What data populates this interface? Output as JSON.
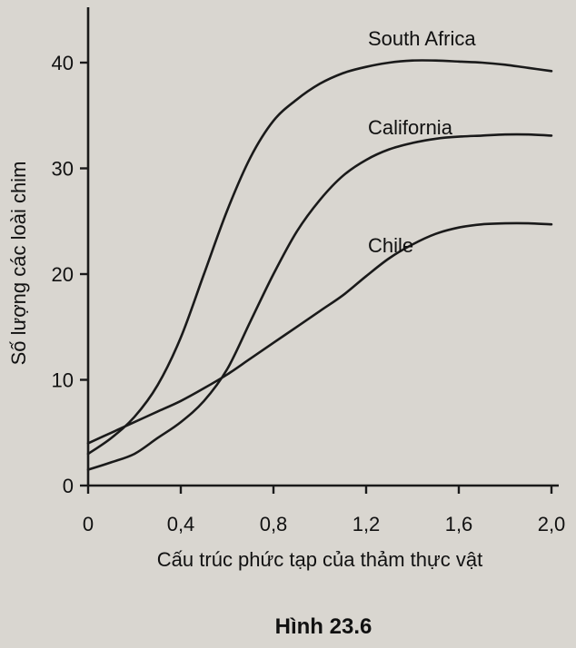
{
  "figure_caption": "Hình 23.6",
  "chart_data": {
    "type": "line",
    "xlabel": "Cấu trúc phức tạp của thảm thực vật",
    "ylabel": "Số lượng các loài chim",
    "xlim": [
      0,
      2.0
    ],
    "ylim": [
      0,
      45
    ],
    "xticks": [
      "0",
      "0,4",
      "0,8",
      "1,2",
      "1,6",
      "2,0"
    ],
    "xtick_values": [
      0,
      0.4,
      0.8,
      1.2,
      1.6,
      2.0
    ],
    "yticks": [
      "0",
      "10",
      "20",
      "30",
      "40"
    ],
    "ytick_values": [
      0,
      10,
      20,
      30,
      40
    ],
    "grid": false,
    "legend": "none",
    "series": [
      {
        "name": "South Africa",
        "x": [
          0,
          0.1,
          0.2,
          0.3,
          0.4,
          0.5,
          0.6,
          0.7,
          0.8,
          0.9,
          1.0,
          1.1,
          1.2,
          1.3,
          1.4,
          1.5,
          1.6,
          1.7,
          1.8,
          1.9,
          2.0
        ],
        "values": [
          3,
          4.5,
          6.5,
          9.5,
          14,
          20,
          26,
          31,
          34.5,
          36.5,
          38,
          39,
          39.6,
          40,
          40.2,
          40.2,
          40.1,
          40,
          39.8,
          39.5,
          39.2
        ]
      },
      {
        "name": "California",
        "x": [
          0,
          0.1,
          0.2,
          0.3,
          0.4,
          0.5,
          0.6,
          0.7,
          0.8,
          0.9,
          1.0,
          1.1,
          1.2,
          1.3,
          1.4,
          1.5,
          1.6,
          1.7,
          1.8,
          1.9,
          2.0
        ],
        "values": [
          1.5,
          2.2,
          3,
          4.5,
          6,
          8,
          11,
          15.5,
          20,
          24,
          27,
          29.3,
          30.8,
          31.8,
          32.4,
          32.8,
          33,
          33.1,
          33.2,
          33.2,
          33.1
        ]
      },
      {
        "name": "Chile",
        "x": [
          0,
          0.1,
          0.2,
          0.3,
          0.4,
          0.5,
          0.6,
          0.7,
          0.8,
          0.9,
          1.0,
          1.1,
          1.2,
          1.3,
          1.4,
          1.5,
          1.6,
          1.7,
          1.8,
          1.9,
          2.0
        ],
        "values": [
          4,
          5,
          6,
          7,
          8,
          9.2,
          10.5,
          12,
          13.5,
          15,
          16.5,
          18,
          19.8,
          21.5,
          22.8,
          23.8,
          24.4,
          24.7,
          24.8,
          24.8,
          24.7
        ]
      }
    ],
    "annotations": [
      "South Africa",
      "California",
      "Chile"
    ]
  }
}
